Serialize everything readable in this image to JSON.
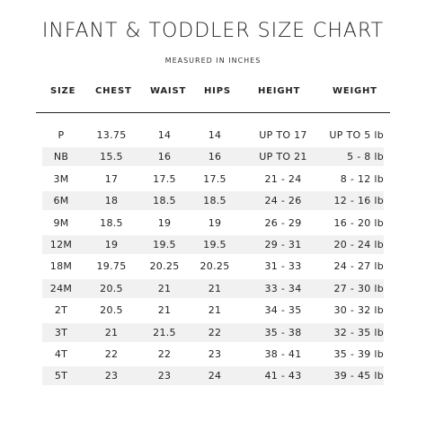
{
  "title": "INFANT & TODDLER SIZE CHART",
  "subtitle": "MEASURED IN INCHES",
  "columns": {
    "size": "SIZE",
    "chest": "CHEST",
    "waist": "WAIST",
    "hips": "HIPS",
    "height": "HEIGHT",
    "weight": "WEIGHT"
  },
  "rows": [
    {
      "size": "P",
      "chest": "13.75",
      "waist": "14",
      "hips": "14",
      "height": "UP TO 17",
      "weight": "UP TO 5 lb",
      "shaded": false
    },
    {
      "size": "NB",
      "chest": "15.5",
      "waist": "16",
      "hips": "16",
      "height": "UP TO 21",
      "weight": "5 - 8 lb",
      "shaded": true
    },
    {
      "size": "3M",
      "chest": "17",
      "waist": "17.5",
      "hips": "17.5",
      "height": "21 - 24",
      "weight": "8 - 12 lb",
      "shaded": false
    },
    {
      "size": "6M",
      "chest": "18",
      "waist": "18.5",
      "hips": "18.5",
      "height": "24 - 26",
      "weight": "12 - 16 lb",
      "shaded": true
    },
    {
      "size": "9M",
      "chest": "18.5",
      "waist": "19",
      "hips": "19",
      "height": "26 - 29",
      "weight": "16 - 20 lb",
      "shaded": false
    },
    {
      "size": "12M",
      "chest": "19",
      "waist": "19.5",
      "hips": "19.5",
      "height": "29 - 31",
      "weight": "20 - 24 lb",
      "shaded": true
    },
    {
      "size": "18M",
      "chest": "19.75",
      "waist": "20.25",
      "hips": "20.25",
      "height": "31 - 33",
      "weight": "24 - 27 lb",
      "shaded": false
    },
    {
      "size": "24M",
      "chest": "20.5",
      "waist": "21",
      "hips": "21",
      "height": "33 - 34",
      "weight": "27 - 30 lb",
      "shaded": true
    },
    {
      "size": "2T",
      "chest": "20.5",
      "waist": "21",
      "hips": "21",
      "height": "34 - 35",
      "weight": "30 - 32 lb",
      "shaded": false
    },
    {
      "size": "3T",
      "chest": "21",
      "waist": "21.5",
      "hips": "22",
      "height": "35 - 38",
      "weight": "32 - 35 lb",
      "shaded": true
    },
    {
      "size": "4T",
      "chest": "22",
      "waist": "22",
      "hips": "23",
      "height": "38 - 41",
      "weight": "35 - 39 lb",
      "shaded": false
    },
    {
      "size": "5T",
      "chest": "23",
      "waist": "23",
      "hips": "24",
      "height": "41 - 43",
      "weight": "39 - 45 lb",
      "shaded": true
    }
  ]
}
